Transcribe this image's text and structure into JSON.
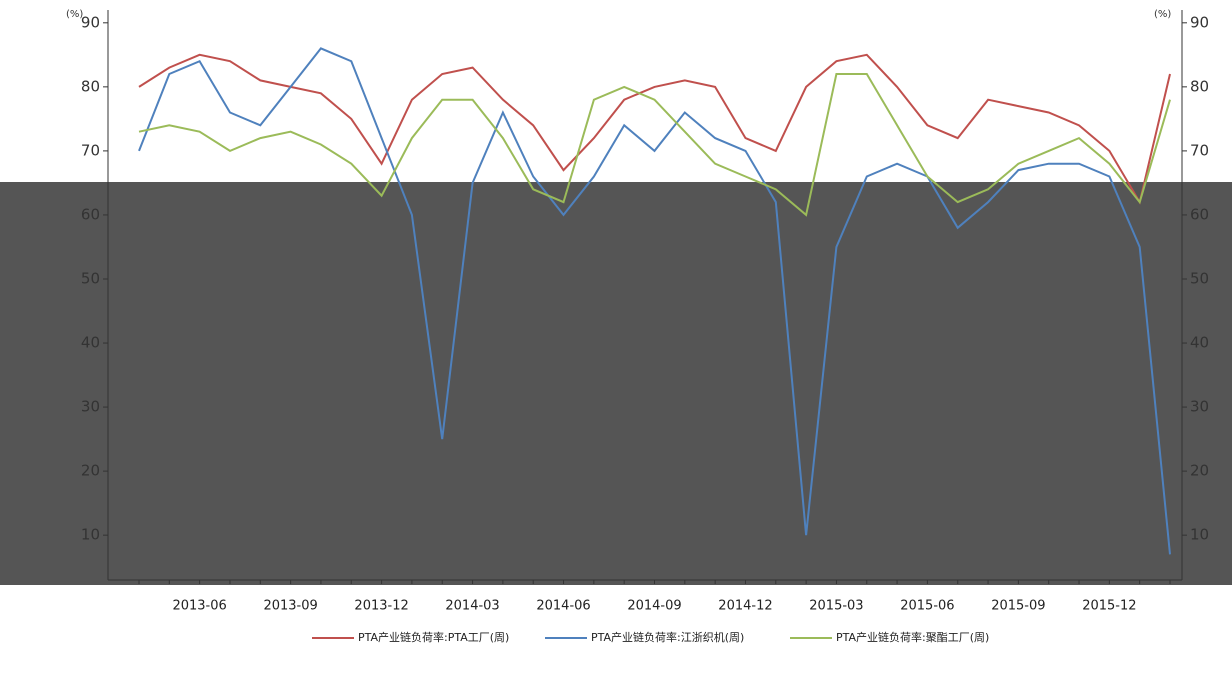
{
  "chart_data": {
    "type": "line",
    "y_label": "(%)",
    "categories": [
      "2013-04",
      "2013-05",
      "2013-06",
      "2013-07",
      "2013-08",
      "2013-09",
      "2013-10",
      "2013-11",
      "2013-12",
      "2014-01",
      "2014-02",
      "2014-03",
      "2014-04",
      "2014-05",
      "2014-06",
      "2014-07",
      "2014-08",
      "2014-09",
      "2014-10",
      "2014-11",
      "2014-12",
      "2015-01",
      "2015-02",
      "2015-03",
      "2015-04",
      "2015-05",
      "2015-06",
      "2015-07",
      "2015-08",
      "2015-09",
      "2015-10",
      "2015-11",
      "2015-12",
      "2016-01",
      "2016-02"
    ],
    "tick_categories": [
      null,
      null,
      "2013-06",
      null,
      null,
      "2013-09",
      null,
      null,
      "2013-12",
      null,
      null,
      "2014-03",
      null,
      null,
      "2014-06",
      null,
      null,
      "2014-09",
      null,
      null,
      "2014-12",
      null,
      null,
      "2015-03",
      null,
      null,
      "2015-06",
      null,
      null,
      "2015-09",
      null,
      null,
      "2015-12",
      null,
      null
    ],
    "series": [
      {
        "name": "PTA产业链负荷率:PTA工厂(周)",
        "color": "#c0504d",
        "values": [
          80,
          83,
          85,
          84,
          81,
          80,
          79,
          75,
          68,
          78,
          82,
          83,
          78,
          74,
          67,
          72,
          78,
          80,
          81,
          80,
          72,
          70,
          80,
          84,
          85,
          80,
          74,
          72,
          78,
          77,
          76,
          74,
          70,
          62,
          82
        ]
      },
      {
        "name": "PTA产业链负荷率:江浙织机(周)",
        "color": "#4f81bd",
        "values": [
          70,
          82,
          84,
          76,
          74,
          80,
          86,
          84,
          72,
          60,
          25,
          65,
          76,
          66,
          60,
          66,
          74,
          70,
          76,
          72,
          70,
          62,
          10,
          55,
          66,
          68,
          66,
          58,
          62,
          67,
          68,
          68,
          66,
          55,
          7
        ]
      },
      {
        "name": "PTA产业链负荷率:聚酯工厂(周)",
        "color": "#9bbb59",
        "values": [
          73,
          74,
          73,
          70,
          72,
          73,
          71,
          68,
          63,
          72,
          78,
          78,
          72,
          64,
          62,
          78,
          80,
          78,
          73,
          68,
          66,
          64,
          60,
          82,
          82,
          74,
          66,
          62,
          64,
          68,
          70,
          72,
          68,
          62,
          78
        ]
      }
    ],
    "ylim": [
      3,
      92
    ],
    "yticks": [
      10,
      20,
      30,
      40,
      50,
      60,
      70,
      80,
      90
    ]
  }
}
